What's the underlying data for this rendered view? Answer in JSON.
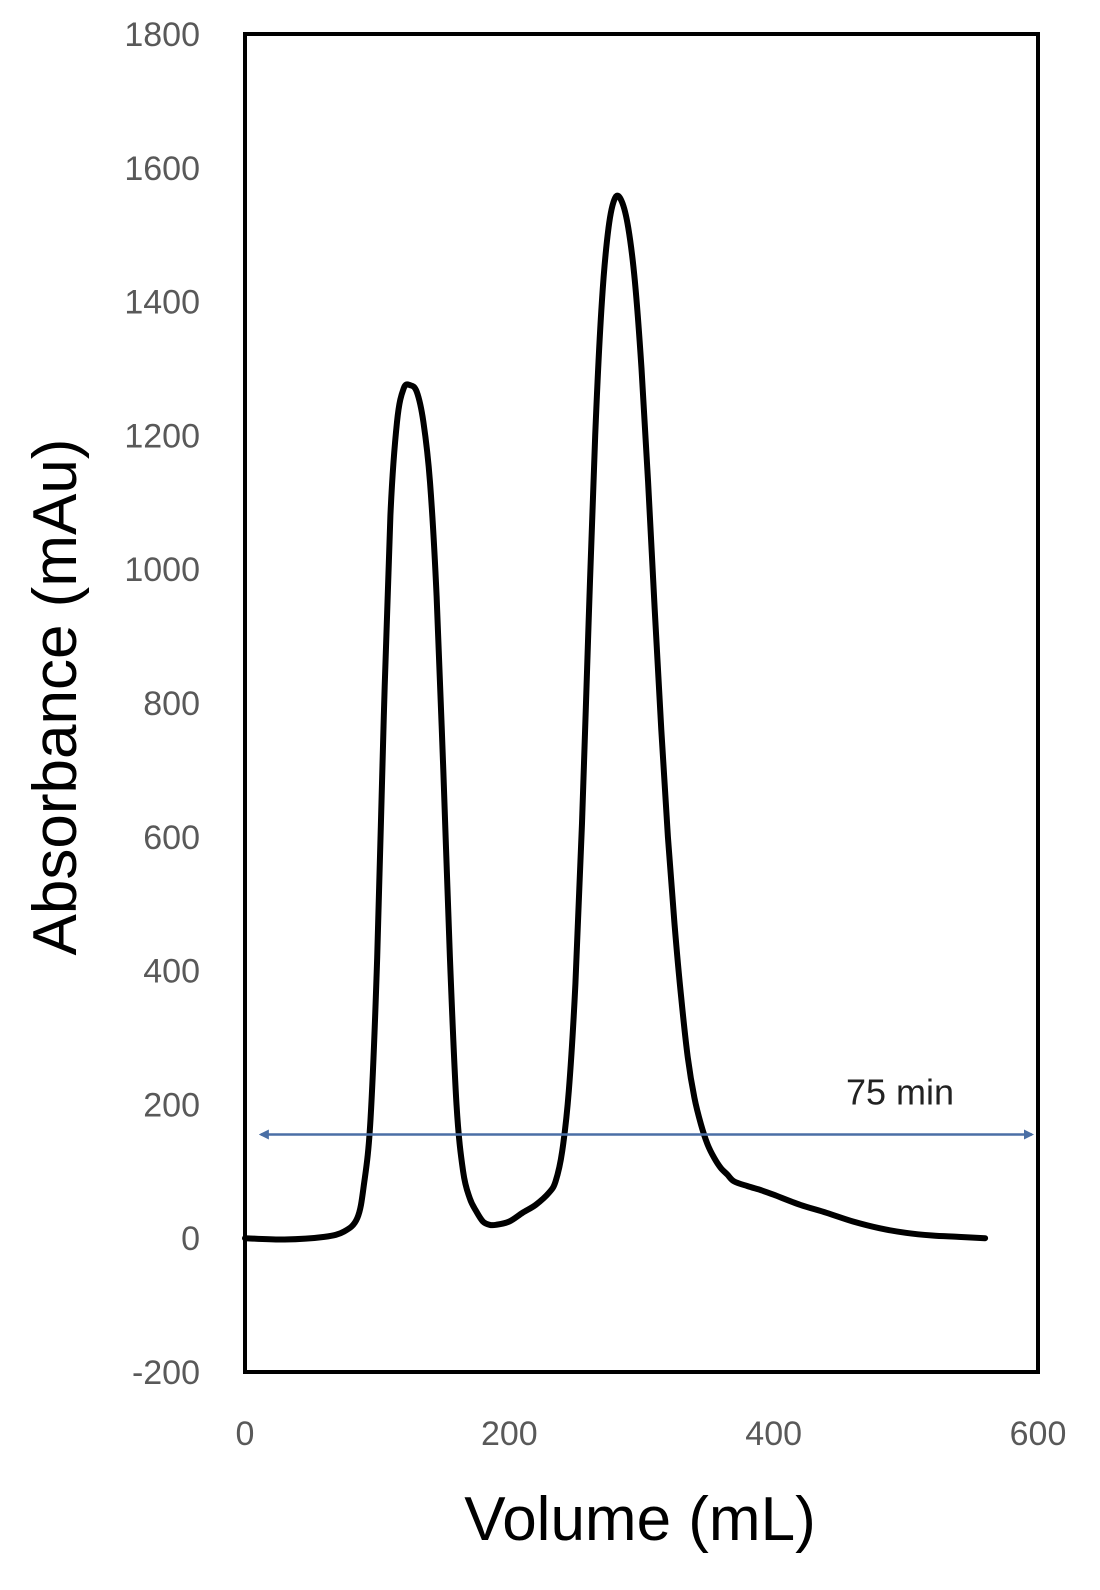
{
  "colors": {
    "background": "#ffffff",
    "frame": "#000000",
    "curve": "#000000",
    "arrow": "#4a6fa5",
    "tick_text": "#595959"
  },
  "chart_data": {
    "type": "line",
    "title": "",
    "xlabel": "Volume (mL)",
    "ylabel": "Absorbance (mAu)",
    "xlim": [
      0,
      600
    ],
    "ylim": [
      -200,
      1800
    ],
    "x_ticks": [
      "0",
      "200",
      "400",
      "600"
    ],
    "y_ticks": [
      "1800",
      "1600",
      "1400",
      "1200",
      "1000",
      "800",
      "600",
      "400",
      "200",
      "0",
      "-200"
    ],
    "grid": false,
    "legend": "none",
    "series": [
      {
        "x": [
          0,
          30,
          60,
          75,
          85,
          90,
          95,
          100,
          105,
          110,
          115,
          120,
          125,
          130,
          135,
          140,
          145,
          150,
          155,
          160,
          165,
          170,
          175,
          180,
          185,
          190,
          200,
          210,
          220,
          230,
          235,
          240,
          245,
          250,
          255,
          260,
          265,
          270,
          275,
          280,
          285,
          290,
          295,
          300,
          305,
          310,
          315,
          320,
          325,
          330,
          335,
          340,
          345,
          350,
          355,
          360,
          365,
          370,
          380,
          390,
          400,
          420,
          440,
          460,
          480,
          500,
          520,
          540,
          560
        ],
        "values": [
          0,
          -2,
          2,
          10,
          30,
          80,
          180,
          420,
          780,
          1080,
          1220,
          1270,
          1275,
          1265,
          1220,
          1130,
          960,
          700,
          420,
          200,
          100,
          60,
          40,
          25,
          20,
          20,
          25,
          38,
          50,
          68,
          85,
          130,
          220,
          380,
          620,
          920,
          1200,
          1400,
          1510,
          1555,
          1550,
          1510,
          1430,
          1300,
          1130,
          940,
          760,
          600,
          470,
          360,
          270,
          210,
          170,
          140,
          120,
          105,
          95,
          85,
          78,
          72,
          65,
          50,
          38,
          25,
          15,
          8,
          4,
          2,
          0
        ]
      }
    ],
    "annotations": [
      {
        "type": "double-arrow",
        "label": "75 min",
        "x_start": 12,
        "x_end": 600,
        "y": 155
      }
    ]
  }
}
